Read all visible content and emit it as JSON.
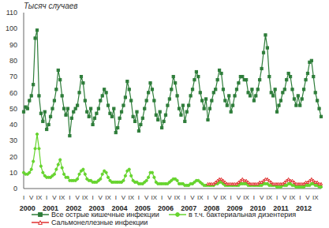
{
  "chart_data": {
    "type": "line",
    "y_label": "Тысяч случаев",
    "legend": "bottom",
    "grid": false,
    "categories": [
      "I",
      null,
      null,
      null,
      "V",
      null,
      null,
      null,
      "IX",
      null,
      null,
      null,
      "I",
      null,
      null,
      null,
      "V",
      null,
      null,
      null,
      "IX",
      null,
      null,
      null,
      "I",
      null,
      null,
      null,
      "V",
      null,
      null,
      null,
      "IX",
      null,
      null,
      null,
      "I",
      null,
      null,
      null,
      "V",
      null,
      null,
      null,
      "IX",
      null,
      null,
      null,
      "I",
      null,
      null,
      null,
      "V",
      null,
      null,
      null,
      "IX",
      null,
      null,
      null,
      "I",
      null,
      null,
      null,
      "V",
      null,
      null,
      null,
      "IX",
      null,
      null,
      null,
      "I",
      null,
      null,
      null,
      "V",
      null,
      null,
      null,
      "IX",
      null,
      null,
      null,
      "I",
      null,
      null,
      null,
      "V",
      null,
      null,
      null,
      "IX",
      null,
      null,
      null,
      "I",
      null,
      null,
      null,
      "V",
      null,
      null,
      null,
      "IX",
      null,
      null,
      null,
      "I",
      null,
      null,
      null,
      "V",
      null,
      null,
      null,
      "IX",
      null,
      null,
      null,
      "I",
      null,
      null,
      null,
      "V",
      null,
      null,
      null,
      "IX",
      null,
      null,
      null,
      "I",
      null,
      null,
      null,
      "V",
      null,
      null,
      null,
      "IX",
      null,
      null,
      null,
      "I",
      null,
      null,
      null,
      "V",
      null,
      null,
      null,
      "IX",
      null,
      null,
      null
    ],
    "year_labels": [
      null,
      null,
      "2000",
      null,
      null,
      null,
      null,
      null,
      null,
      null,
      null,
      null,
      null,
      null,
      "2001",
      null,
      null,
      null,
      null,
      null,
      null,
      null,
      null,
      null,
      null,
      null,
      "2002",
      null,
      null,
      null,
      null,
      null,
      null,
      null,
      null,
      null,
      null,
      null,
      "2003",
      null,
      null,
      null,
      null,
      null,
      null,
      null,
      null,
      null,
      null,
      null,
      "2004",
      null,
      null,
      null,
      null,
      null,
      null,
      null,
      null,
      null,
      null,
      null,
      "2005",
      null,
      null,
      null,
      null,
      null,
      null,
      null,
      null,
      null,
      null,
      null,
      "2006",
      null,
      null,
      null,
      null,
      null,
      null,
      null,
      null,
      null,
      null,
      null,
      "2007",
      null,
      null,
      null,
      null,
      null,
      null,
      null,
      null,
      null,
      null,
      null,
      "2008",
      null,
      null,
      null,
      null,
      null,
      null,
      null,
      null,
      null,
      null,
      null,
      "2009",
      null,
      null,
      null,
      null,
      null,
      null,
      null,
      null,
      null,
      null,
      null,
      "2010",
      null,
      null,
      null,
      null,
      null,
      null,
      null,
      null,
      null,
      null,
      null,
      "2011",
      null,
      null,
      null,
      null,
      null,
      null,
      null,
      null,
      null,
      null,
      null,
      "2012",
      null,
      null,
      null,
      null,
      null,
      null,
      null,
      null,
      null
    ],
    "ylim": [
      0,
      110
    ],
    "yticks": [
      0,
      10,
      20,
      30,
      40,
      50,
      60,
      70,
      80,
      90,
      100,
      110
    ],
    "series": [
      {
        "name": "Все острые кишечные инфекции",
        "color": "#2e7d3a",
        "marker": "square",
        "values": [
          48,
          51,
          50,
          55,
          58,
          65,
          94,
          99,
          58,
          47,
          42,
          48,
          37,
          40,
          45,
          50,
          55,
          62,
          74,
          68,
          58,
          50,
          46,
          50,
          33,
          44,
          48,
          50,
          52,
          60,
          70,
          66,
          55,
          48,
          45,
          50,
          40,
          44,
          47,
          50,
          55,
          58,
          62,
          60,
          52,
          47,
          45,
          50,
          35,
          38,
          44,
          48,
          52,
          57,
          67,
          62,
          55,
          45,
          42,
          48,
          36,
          40,
          44,
          50,
          55,
          60,
          66,
          62,
          55,
          46,
          43,
          48,
          38,
          42,
          46,
          52,
          56,
          62,
          70,
          66,
          58,
          50,
          46,
          52,
          42,
          48,
          52,
          58,
          62,
          68,
          73,
          70,
          60,
          55,
          50,
          56,
          43,
          50,
          55,
          60,
          62,
          68,
          74,
          72,
          62,
          55,
          52,
          58,
          48,
          52,
          58,
          62,
          66,
          70,
          70,
          68,
          68,
          60,
          58,
          62,
          55,
          58,
          62,
          68,
          75,
          85,
          96,
          88,
          70,
          60,
          58,
          62,
          48,
          52,
          55,
          60,
          62,
          68,
          72,
          70,
          62,
          56,
          52,
          58,
          52,
          56,
          62,
          68,
          72,
          79,
          80,
          70,
          60,
          55,
          50,
          45
        ]
      },
      {
        "name": "в т.ч. бактериальная дизентерия",
        "color": "#66d42e",
        "marker": "circle",
        "values": [
          10,
          9,
          9,
          10,
          12,
          17,
          25,
          34,
          25,
          14,
          10,
          8,
          7,
          7,
          7,
          8,
          9,
          12,
          15,
          18,
          13,
          9,
          7,
          7,
          5,
          5,
          5,
          5,
          6,
          9,
          11,
          12,
          9,
          6,
          5,
          5,
          4,
          4,
          4,
          5,
          6,
          9,
          11,
          10,
          7,
          5,
          4,
          4,
          4,
          4,
          4,
          4,
          5,
          8,
          11,
          12,
          8,
          5,
          4,
          4,
          3,
          3,
          3,
          4,
          5,
          7,
          10,
          10,
          7,
          4,
          3,
          3,
          3,
          3,
          3,
          3,
          4,
          5,
          6,
          6,
          5,
          3,
          3,
          3,
          2,
          2,
          2,
          3,
          3,
          4,
          5,
          5,
          4,
          3,
          2,
          2,
          2,
          2,
          2,
          2,
          3,
          3,
          4,
          4,
          3,
          2,
          2,
          2,
          2,
          2,
          2,
          2,
          2,
          3,
          3,
          3,
          3,
          2,
          2,
          2,
          2,
          2,
          2,
          2,
          2,
          3,
          3,
          3,
          2,
          2,
          2,
          2,
          1,
          1,
          1,
          2,
          2,
          2,
          3,
          3,
          2,
          2,
          1,
          1,
          1,
          1,
          1,
          2,
          2,
          2,
          3,
          3,
          2,
          2,
          1,
          1
        ]
      },
      {
        "name": "Сальмонеллезные инфекции",
        "color": "#e03030",
        "marker": "triangle",
        "values": [
          null,
          null,
          null,
          null,
          null,
          null,
          null,
          null,
          null,
          null,
          null,
          null,
          null,
          null,
          null,
          null,
          null,
          null,
          null,
          null,
          null,
          null,
          null,
          null,
          null,
          null,
          null,
          null,
          null,
          null,
          null,
          null,
          null,
          null,
          null,
          null,
          null,
          null,
          null,
          null,
          null,
          null,
          null,
          null,
          null,
          null,
          null,
          null,
          null,
          null,
          null,
          null,
          null,
          null,
          null,
          null,
          null,
          null,
          null,
          null,
          null,
          null,
          null,
          null,
          null,
          null,
          null,
          null,
          null,
          null,
          null,
          null,
          null,
          null,
          null,
          null,
          null,
          null,
          null,
          null,
          null,
          null,
          null,
          null,
          null,
          null,
          null,
          null,
          null,
          null,
          null,
          null,
          null,
          null,
          null,
          null,
          3,
          3,
          3,
          3,
          4,
          5,
          6,
          6,
          5,
          4,
          3,
          3,
          3,
          3,
          3,
          3,
          4,
          5,
          6,
          5,
          5,
          4,
          3,
          3,
          3,
          3,
          3,
          4,
          4,
          5,
          6,
          6,
          5,
          4,
          3,
          3,
          3,
          3,
          3,
          3,
          4,
          5,
          6,
          5,
          5,
          4,
          3,
          3,
          3,
          3,
          3,
          4,
          4,
          5,
          6,
          5,
          4,
          4,
          3,
          3
        ]
      }
    ]
  }
}
